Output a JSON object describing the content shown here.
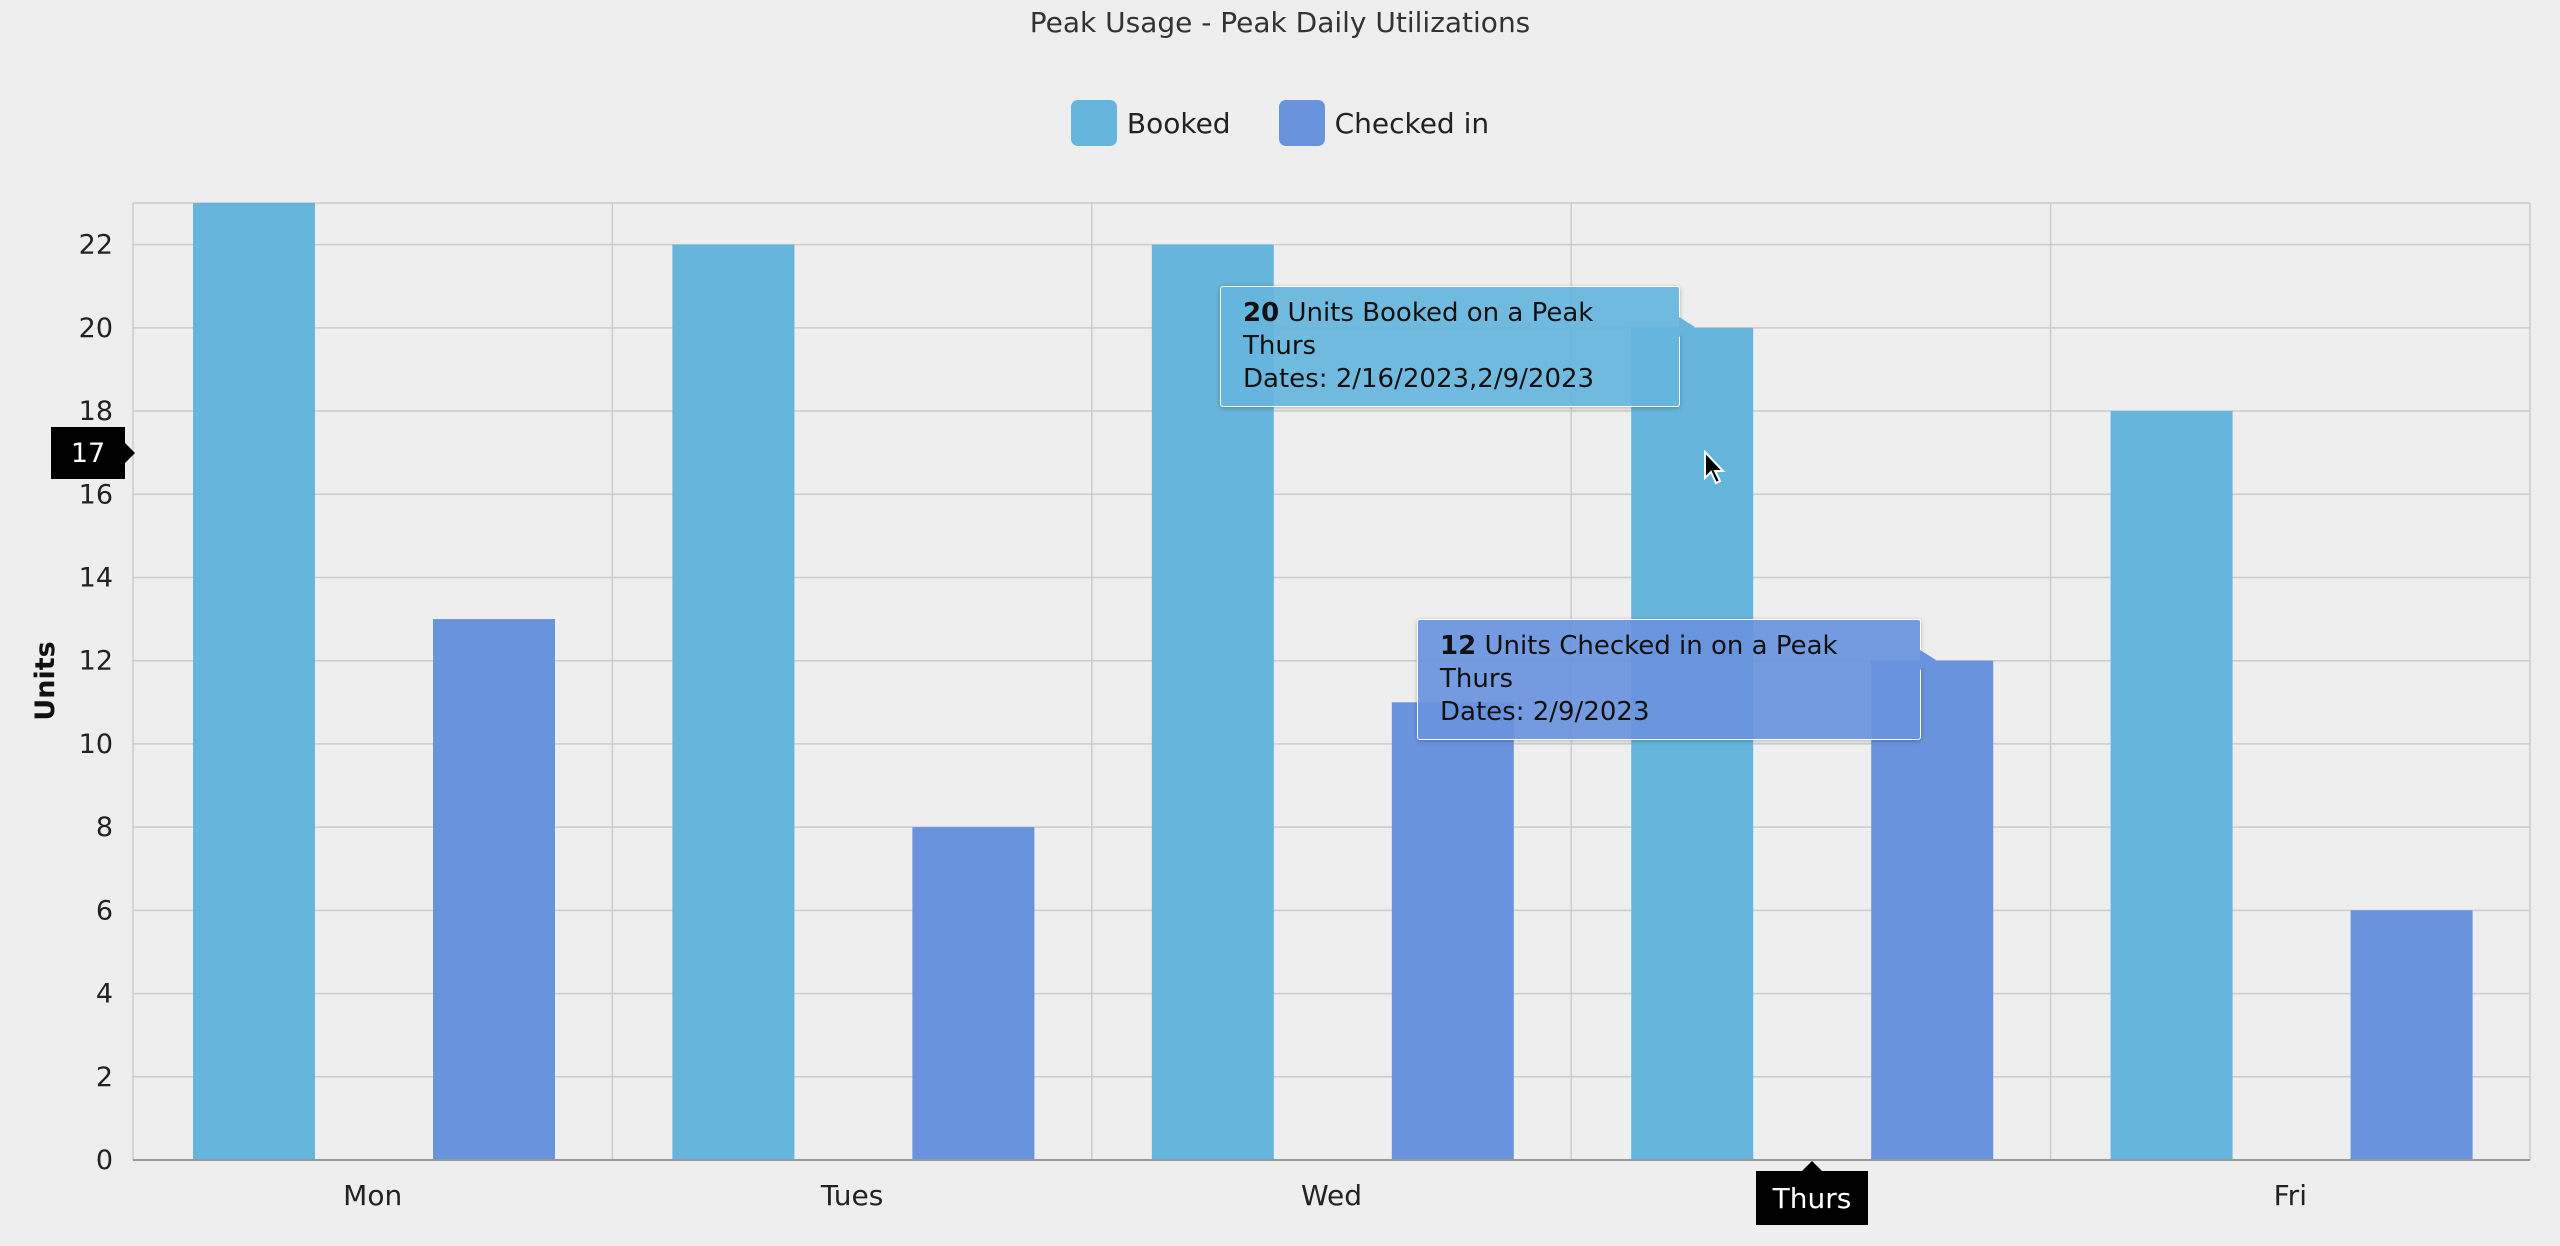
{
  "legend": {
    "booked_label": "Booked",
    "checked_label": "Checked in"
  },
  "colors": {
    "booked": "#65b5dd",
    "checked_in": "#6993dd",
    "background": "#efeeef",
    "grid": "#cccccc"
  },
  "chart_data": {
    "type": "bar",
    "title": "Peak Usage - Peak Daily Utilizations",
    "xlabel": "",
    "ylabel": "Units",
    "ylim": [
      0,
      23
    ],
    "yticks": [
      0,
      2,
      4,
      6,
      8,
      10,
      12,
      14,
      16,
      18,
      20,
      22
    ],
    "categories": [
      "Mon",
      "Tues",
      "Wed",
      "Thurs",
      "Fri"
    ],
    "series": [
      {
        "name": "Booked",
        "values": [
          23,
          22,
          22,
          20,
          18
        ]
      },
      {
        "name": "Checked in",
        "values": [
          13,
          8,
          11,
          12,
          6
        ]
      }
    ],
    "grid": true,
    "legend_position": "top-center"
  },
  "tooltips": {
    "booked": {
      "value": "20",
      "text": " Units Booked on a Peak Thurs",
      "dates": "Dates: 2/16/2023,2/9/2023"
    },
    "checked": {
      "value": "12",
      "text": " Units Checked in on a Peak Thurs",
      "dates": "Dates: 2/9/2023"
    }
  },
  "crosshair": {
    "y_value": "17",
    "x_label": "Thurs"
  },
  "cursor_icon": "mouse-pointer-icon"
}
